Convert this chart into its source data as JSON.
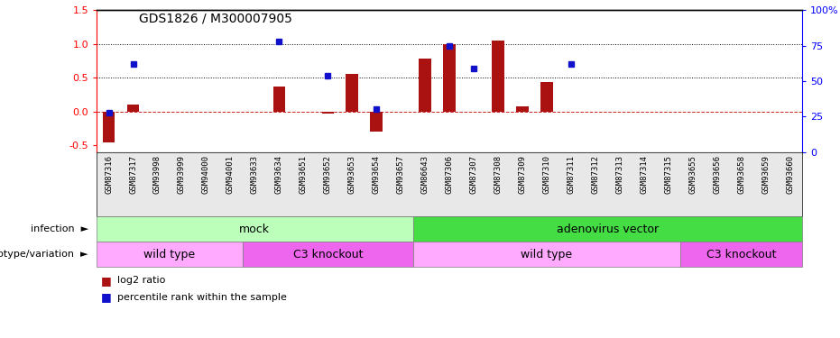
{
  "title": "GDS1826 / M300007905",
  "samples": [
    "GSM87316",
    "GSM87317",
    "GSM93998",
    "GSM93999",
    "GSM94000",
    "GSM94001",
    "GSM93633",
    "GSM93634",
    "GSM93651",
    "GSM93652",
    "GSM93653",
    "GSM93654",
    "GSM93657",
    "GSM86643",
    "GSM87306",
    "GSM87307",
    "GSM87308",
    "GSM87309",
    "GSM87310",
    "GSM87311",
    "GSM87312",
    "GSM87313",
    "GSM87314",
    "GSM87315",
    "GSM93655",
    "GSM93656",
    "GSM93658",
    "GSM93659",
    "GSM93660"
  ],
  "log2_ratio": [
    -0.46,
    0.1,
    0.0,
    0.0,
    0.0,
    0.0,
    0.0,
    0.37,
    0.0,
    -0.03,
    0.55,
    -0.3,
    0.0,
    0.78,
    1.0,
    0.0,
    1.05,
    0.08,
    0.44,
    0.0,
    0.0,
    0.0,
    0.0,
    0.0,
    0.0,
    0.0,
    0.0,
    0.0,
    0.0
  ],
  "percentile_rank_pct": [
    28,
    62,
    0,
    0,
    0,
    0,
    0,
    78,
    0,
    54,
    0,
    30,
    0,
    0,
    75,
    59,
    0,
    0,
    0,
    62,
    0,
    0,
    0,
    0,
    0,
    0,
    0,
    0,
    0
  ],
  "percentile_has_value": [
    true,
    true,
    false,
    false,
    false,
    false,
    false,
    true,
    false,
    true,
    false,
    true,
    false,
    false,
    true,
    true,
    false,
    false,
    false,
    true,
    false,
    false,
    false,
    false,
    false,
    false,
    false,
    false,
    false
  ],
  "ylim_left": [
    -0.6,
    1.5
  ],
  "ylim_right": [
    0,
    100
  ],
  "bar_color": "#aa1111",
  "point_color": "#1111cc",
  "infection_groups": [
    {
      "label": "mock",
      "start": 0,
      "end": 12,
      "color": "#bbffbb"
    },
    {
      "label": "adenovirus vector",
      "start": 13,
      "end": 28,
      "color": "#44dd44"
    }
  ],
  "genotype_groups": [
    {
      "label": "wild type",
      "start": 0,
      "end": 5,
      "color": "#ffaaff"
    },
    {
      "label": "C3 knockout",
      "start": 6,
      "end": 12,
      "color": "#ee66ee"
    },
    {
      "label": "wild type",
      "start": 13,
      "end": 23,
      "color": "#ffaaff"
    },
    {
      "label": "C3 knockout",
      "start": 24,
      "end": 28,
      "color": "#ee66ee"
    }
  ],
  "infection_label": "infection",
  "genotype_label": "genotype/variation",
  "legend_log2": "log2 ratio",
  "legend_pct": "percentile rank within the sample",
  "left_yticks": [
    -0.5,
    0.0,
    0.5,
    1.0,
    1.5
  ],
  "right_yticks": [
    0,
    25,
    50,
    75,
    100
  ]
}
